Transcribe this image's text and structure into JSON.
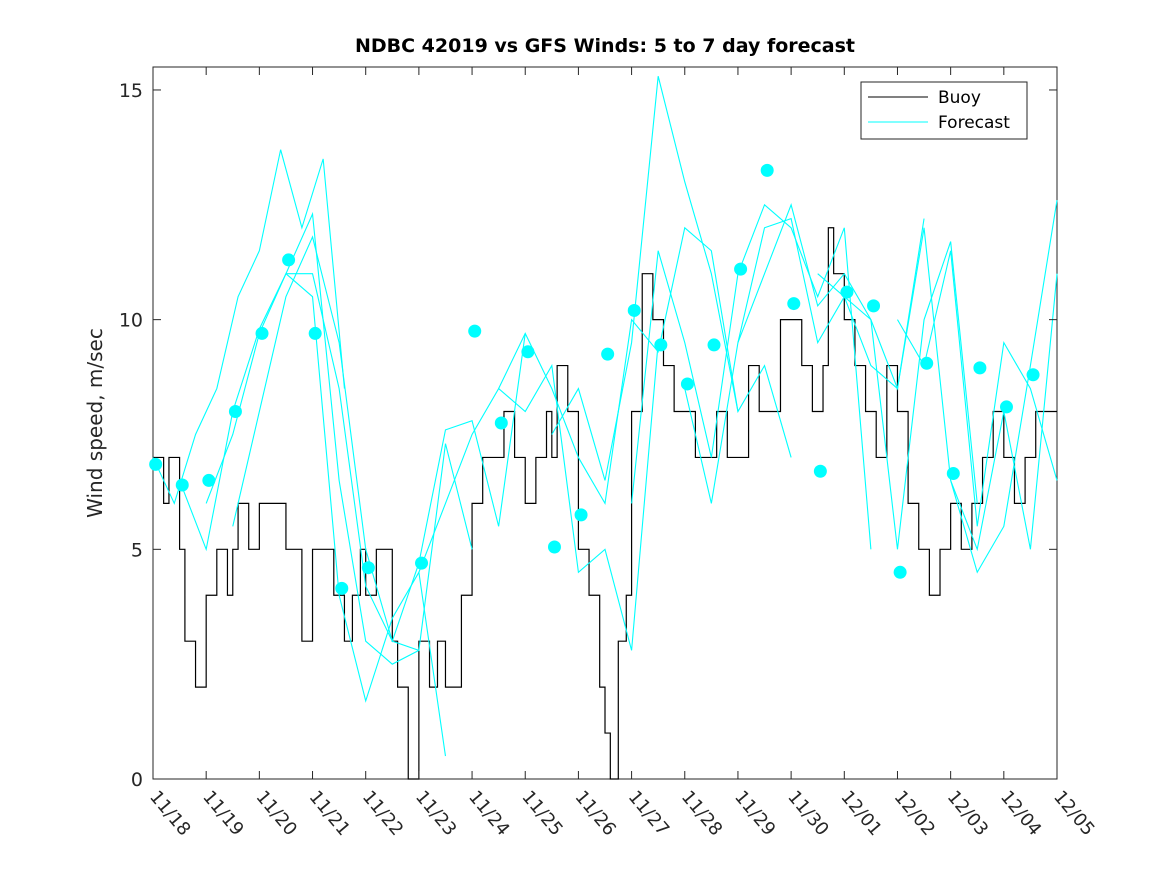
{
  "chart_data": {
    "type": "line",
    "title": "NDBC 42019 vs GFS Winds: 5 to 7 day forecast",
    "xlabel": "",
    "ylabel": "Wind speed, m/sec",
    "xlim": [
      0,
      17
    ],
    "ylim": [
      0,
      15.5
    ],
    "yticks": [
      0,
      5,
      10,
      15
    ],
    "xtick_labels": [
      "11/18",
      "11/19",
      "11/20",
      "11/21",
      "11/22",
      "11/23",
      "11/24",
      "11/25",
      "11/26",
      "11/27",
      "11/28",
      "11/29",
      "11/30",
      "12/01",
      "12/02",
      "12/03",
      "12/04",
      "12/05"
    ],
    "colors": {
      "buoy": "#000000",
      "forecast": "#00ffff"
    },
    "legend": {
      "position": "top-right",
      "entries": [
        "Buoy",
        "Forecast"
      ]
    },
    "series": [
      {
        "name": "Buoy",
        "x": [
          0,
          0.15,
          0.2,
          0.3,
          0.5,
          0.6,
          0.8,
          1.0,
          1.2,
          1.4,
          1.5,
          1.6,
          1.8,
          2.0,
          2.2,
          2.5,
          2.8,
          3.0,
          3.2,
          3.4,
          3.6,
          3.75,
          3.9,
          4.0,
          4.2,
          4.5,
          4.6,
          4.8,
          5.0,
          5.2,
          5.35,
          5.5,
          5.8,
          6.0,
          6.2,
          6.4,
          6.6,
          6.8,
          7.0,
          7.2,
          7.4,
          7.5,
          7.6,
          7.8,
          8.0,
          8.2,
          8.4,
          8.5,
          8.6,
          8.75,
          8.9,
          9.0,
          9.2,
          9.4,
          9.6,
          9.8,
          10.0,
          10.2,
          10.4,
          10.6,
          10.8,
          11.0,
          11.2,
          11.4,
          11.6,
          11.8,
          12.0,
          12.2,
          12.4,
          12.6,
          12.7,
          12.8,
          13.0,
          13.2,
          13.4,
          13.6,
          13.8,
          14.0,
          14.2,
          14.4,
          14.6,
          14.8,
          15.0,
          15.2,
          15.4,
          15.6,
          15.8,
          16.0,
          16.2,
          16.4,
          16.6,
          16.8
        ],
        "y": [
          7,
          7,
          6,
          7,
          5,
          3,
          2,
          4,
          5,
          4,
          5,
          6,
          5,
          6,
          6,
          5,
          3,
          5,
          5,
          4,
          3,
          4,
          5,
          4,
          5,
          3,
          2,
          0,
          3,
          2,
          3,
          2,
          4,
          6,
          7,
          7,
          8,
          7,
          6,
          7,
          8,
          7,
          9,
          8,
          5,
          4,
          2,
          1,
          0,
          3,
          4,
          8,
          11,
          10,
          9,
          8,
          8,
          7,
          7,
          8,
          7,
          7,
          9,
          8,
          8,
          10,
          10,
          9,
          8,
          9,
          12,
          11,
          10,
          9,
          8,
          7,
          9,
          8,
          6,
          5,
          4,
          5,
          6,
          5,
          6,
          7,
          8,
          7,
          6,
          7,
          8,
          8
        ]
      },
      {
        "name": "Forecast",
        "markers": {
          "x": [
            0.05,
            0.55,
            1.05,
            1.55,
            2.05,
            2.55,
            3.05,
            3.55,
            4.05,
            4.55,
            5.05,
            5.55,
            6.05,
            6.55,
            7.05,
            7.55,
            8.05,
            8.55,
            9.05,
            9.55,
            10.05,
            10.55,
            11.05,
            11.55,
            12.05,
            12.55,
            13.05,
            13.55,
            14.05,
            14.55,
            15.05,
            15.55,
            16.05,
            16.55
          ],
          "y": [
            6.85,
            6.4,
            6.5,
            8.0,
            9.7,
            11.3,
            9.7,
            4.15,
            4.6,
            null,
            4.7,
            null,
            9.75,
            7.75,
            9.3,
            5.05,
            5.75,
            9.25,
            10.2,
            9.45,
            8.6,
            9.45,
            11.1,
            13.25,
            10.35,
            6.7,
            10.6,
            10.3,
            4.5,
            9.05,
            6.65,
            8.95,
            8.1,
            8.8
          ]
        },
        "lines": [
          {
            "x": [
              0,
              0.4,
              0.8,
              1.2,
              1.6,
              2.0,
              2.4,
              2.8,
              3.2,
              3.6
            ],
            "y": [
              7.0,
              6.0,
              7.5,
              8.5,
              10.5,
              11.5,
              13.7,
              12.0,
              13.5,
              8.5
            ]
          },
          {
            "x": [
              0.5,
              1.0,
              1.5,
              2.0,
              2.5,
              3.0,
              3.5,
              4.0,
              4.5,
              5.0
            ],
            "y": [
              6.5,
              5.0,
              8.0,
              9.8,
              11.0,
              12.3,
              6.5,
              3.0,
              2.5,
              2.8
            ]
          },
          {
            "x": [
              1.0,
              1.5,
              2.0,
              2.5,
              3.0,
              3.5,
              4.0,
              4.5,
              5.0,
              5.5
            ],
            "y": [
              6.0,
              7.5,
              9.7,
              11.0,
              10.5,
              4.0,
              1.7,
              3.5,
              4.5,
              0.5
            ]
          },
          {
            "x": [
              1.5,
              2.0,
              2.5,
              3.0,
              3.5,
              4.0,
              4.5,
              5.0,
              5.5,
              6.0
            ],
            "y": [
              5.5,
              8.0,
              10.5,
              11.8,
              9.5,
              5.0,
              3.0,
              2.8,
              7.3,
              5.0
            ]
          },
          {
            "x": [
              2.5,
              3.0,
              3.5,
              4.0,
              4.5,
              5.0,
              5.5,
              6.0,
              6.5,
              7.0
            ],
            "y": [
              11.0,
              11.0,
              8.5,
              4.2,
              3.0,
              4.7,
              7.6,
              7.8,
              5.5,
              9.7
            ]
          },
          {
            "x": [
              5.0,
              5.5,
              6.0,
              6.5,
              7.0,
              7.5,
              8.0,
              8.5,
              9.0,
              9.5
            ],
            "y": [
              4.5,
              6.0,
              7.5,
              8.5,
              8.0,
              9.0,
              4.5,
              5.0,
              2.8,
              9.5
            ]
          },
          {
            "x": [
              6.5,
              7.0,
              7.5,
              8.0,
              8.5,
              9.0,
              9.5,
              10.0,
              10.5,
              11.0
            ],
            "y": [
              8.5,
              9.7,
              8.5,
              7.0,
              6.0,
              10.0,
              9.3,
              12.0,
              11.5,
              8.0
            ]
          },
          {
            "x": [
              7.5,
              8.0,
              8.5,
              9.0,
              9.5,
              10.0,
              10.5,
              11.0,
              11.5,
              12.0
            ],
            "y": [
              7.5,
              8.5,
              6.5,
              9.5,
              15.3,
              13.0,
              11.0,
              8.0,
              9.0,
              7.0
            ]
          },
          {
            "x": [
              9.0,
              9.5,
              10.0,
              10.5,
              11.0,
              11.5,
              12.0,
              12.5,
              13.0,
              13.5
            ],
            "y": [
              6.0,
              11.5,
              9.5,
              7.0,
              11.0,
              12.5,
              12.0,
              10.5,
              12.0,
              5.0
            ]
          },
          {
            "x": [
              10.0,
              10.5,
              11.0,
              11.5,
              12.0,
              12.5,
              13.0,
              13.5,
              14.0,
              14.5
            ],
            "y": [
              8.5,
              6.0,
              9.5,
              11.0,
              12.5,
              10.3,
              11.0,
              10.0,
              8.5,
              12.2
            ]
          },
          {
            "x": [
              11.0,
              11.5,
              12.0,
              12.5,
              13.0,
              13.5,
              14.0,
              14.5,
              15.0,
              15.5
            ],
            "y": [
              9.5,
              12.0,
              12.2,
              9.5,
              10.5,
              10.0,
              5.0,
              10.0,
              11.7,
              6.0
            ]
          },
          {
            "x": [
              12.5,
              13.0,
              13.5,
              14.0,
              14.5,
              15.0,
              15.5,
              16.0,
              16.5,
              17.0
            ],
            "y": [
              11.0,
              10.5,
              9.0,
              8.5,
              12.0,
              6.5,
              4.5,
              5.5,
              9.0,
              12.6
            ]
          },
          {
            "x": [
              14.0,
              14.5,
              15.0,
              15.5,
              16.0,
              16.5,
              17.0
            ],
            "y": [
              10.0,
              9.0,
              11.5,
              5.5,
              9.5,
              8.5,
              6.5
            ]
          },
          {
            "x": [
              15.0,
              15.5,
              16.0,
              16.5,
              17.0
            ],
            "y": [
              6.5,
              5.0,
              8.0,
              5.0,
              11.0
            ]
          }
        ]
      }
    ]
  }
}
